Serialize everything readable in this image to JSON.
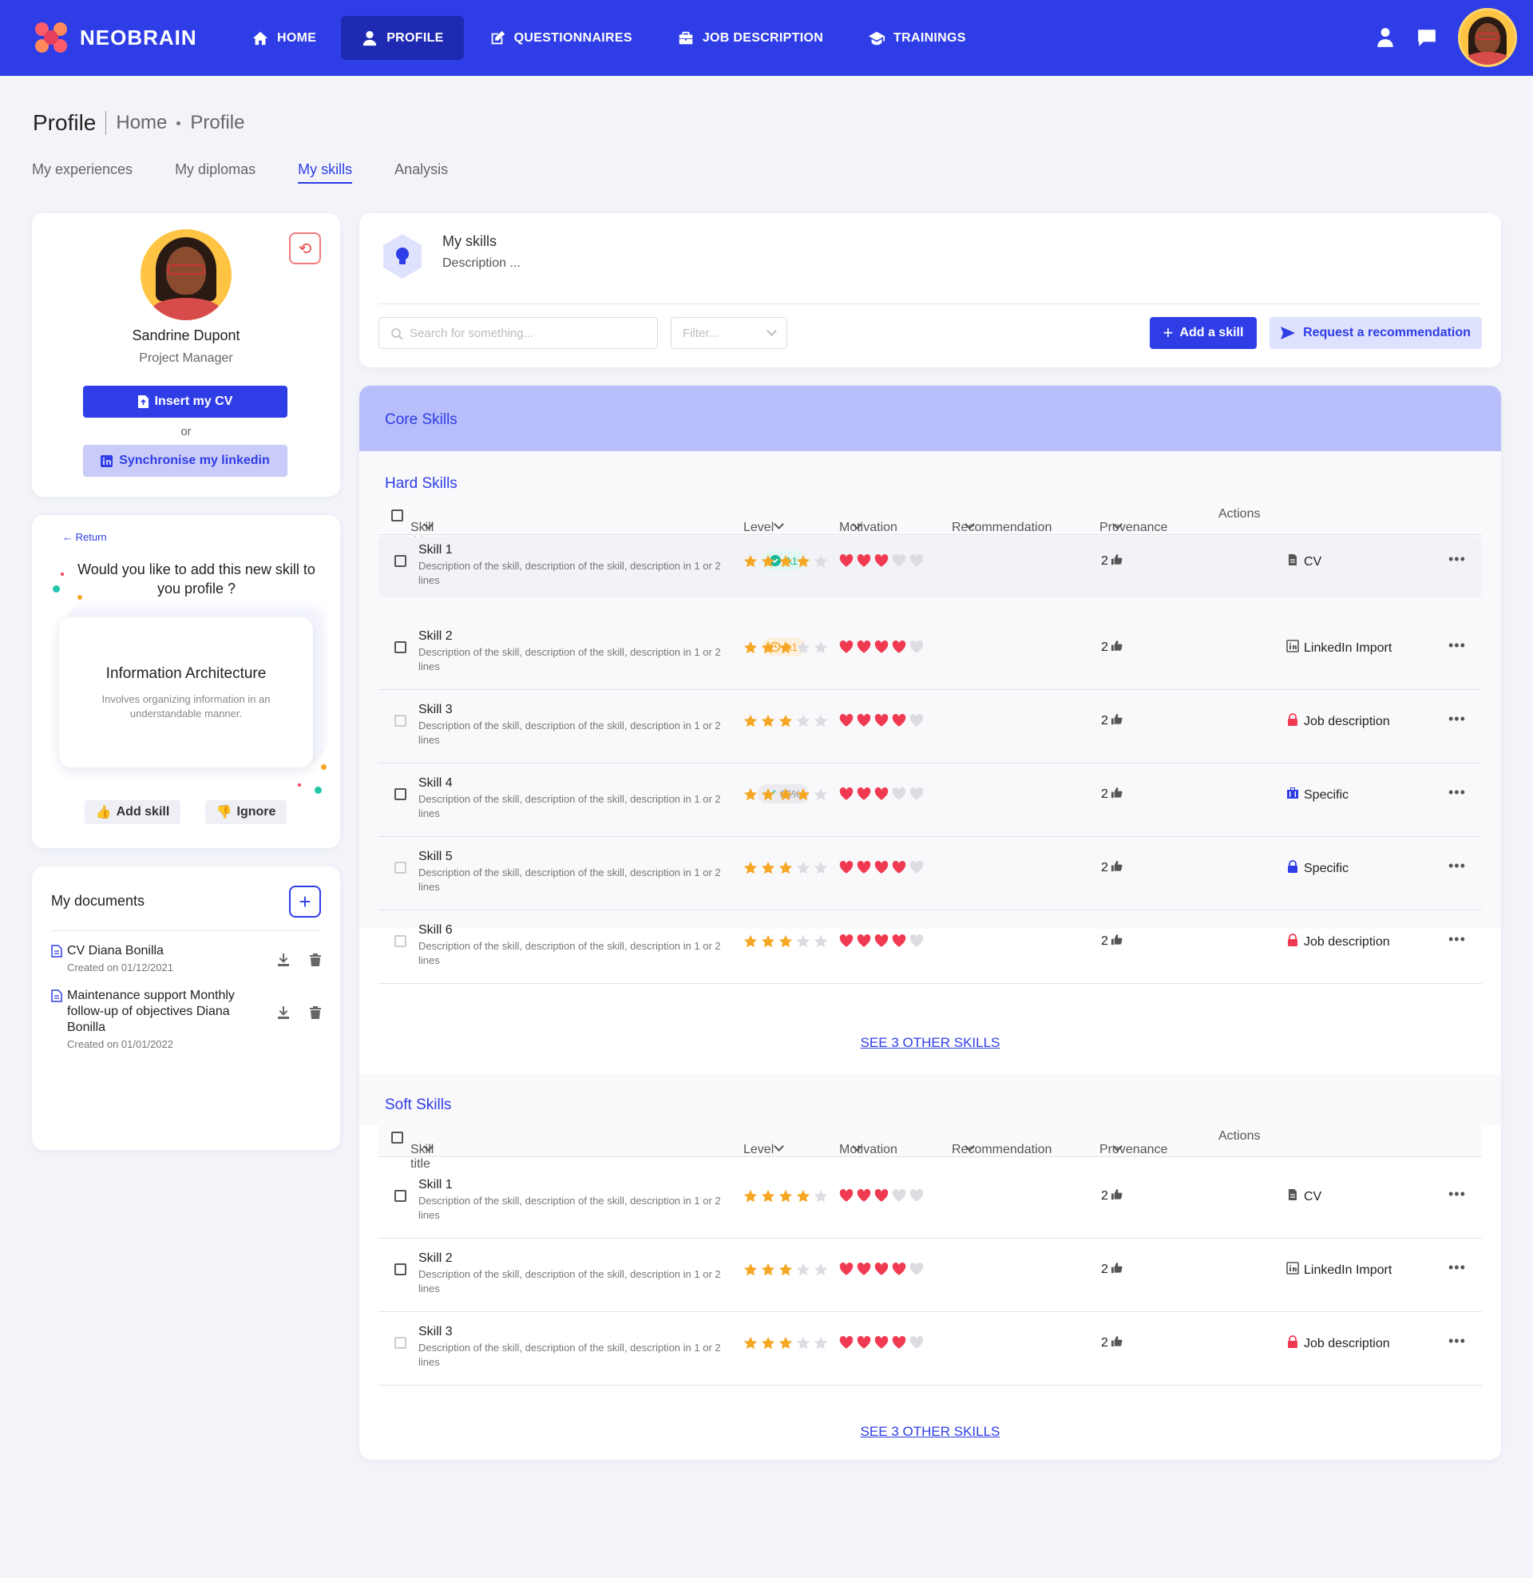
{
  "app": {
    "name": "NEOBRAIN"
  },
  "nav": [
    {
      "label": "HOME",
      "icon": "home-icon",
      "active": false
    },
    {
      "label": "PROFILE",
      "icon": "user-icon",
      "active": true
    },
    {
      "label": "QUESTIONNAIRES",
      "icon": "edit-icon",
      "active": false
    },
    {
      "label": "JOB DESCRIPTION",
      "icon": "briefcase-icon",
      "active": false
    },
    {
      "label": "TRAININGS",
      "icon": "graduation-cap-icon",
      "active": false
    }
  ],
  "header": {
    "title": "Profile",
    "breadcrumb": [
      "Home",
      "Profile"
    ]
  },
  "tabs": [
    "My experiences",
    "My diplomas",
    "My skills",
    "Analysis"
  ],
  "active_tab": "My skills",
  "profile": {
    "name": "Sandrine Dupont",
    "role": "Project Manager",
    "insert_cv": "Insert my CV",
    "or": "or",
    "sync_linkedin": "Synchronise my linkedin"
  },
  "suggestion": {
    "return": "Return",
    "question": "Would you like to add this new skill to you profile ?",
    "skill_title": "Information Architecture",
    "skill_desc": "Involves organizing information in an understandable manner.",
    "add": "Add skill",
    "ignore": "Ignore"
  },
  "documents": {
    "title": "My documents",
    "items": [
      {
        "name": "CV Diana Bonilla",
        "date": "Created on 01/12/2021"
      },
      {
        "name": "Maintenance support Monthly follow-up of objectives Diana Bonilla",
        "date": "Created on 01/01/2022"
      }
    ]
  },
  "skills_header": {
    "title": "My skills",
    "desc": "Description ...",
    "search_placeholder": "Search for something...",
    "filter_placeholder": "Filter...",
    "add_skill": "Add a skill",
    "request": "Request a recommendation"
  },
  "core_title": "Core Skills",
  "columns": [
    "Skill title",
    "Level",
    "Motivation",
    "Recommendation",
    "Provenance",
    "Actions"
  ],
  "hard_skills": {
    "title": "Hard Skills",
    "see_more": "SEE 3 OTHER SKILLS",
    "rows": [
      {
        "title": "Skill 1",
        "desc": "Description of the skill, description of the skill, description in 1 or 2 lines",
        "badge": "A1",
        "badge_type": "success",
        "level": 4,
        "motivation": 3,
        "reco": "2",
        "prov": "CV",
        "prov_icon": "document-icon",
        "prov_color": "#555555"
      },
      {
        "title": "Skill 2",
        "desc": "Description of the skill, description of the skill, description in 1 or 2 lines",
        "badge": "A1",
        "badge_type": "pending",
        "level": 3,
        "motivation": 4,
        "reco": "2",
        "prov": "LinkedIn Import",
        "prov_icon": "linkedin-icon",
        "prov_color": "#555555"
      },
      {
        "title": "Skill 3",
        "desc": "Description of the skill, description of the skill, description in 1 or 2 lines",
        "badge": "",
        "badge_type": "",
        "level": 3,
        "motivation": 4,
        "reco": "2",
        "prov": "Job description",
        "prov_icon": "lock-icon",
        "prov_color": "#f03a52"
      },
      {
        "title": "Skill 4",
        "desc": "Description of the skill, description of the skill, description in 1 or 2 lines",
        "badge": "65%",
        "badge_type": "neutral",
        "level": 4,
        "motivation": 3,
        "reco": "2",
        "prov": "Specific",
        "prov_icon": "briefcase-icon",
        "prov_color": "#2e3de6"
      },
      {
        "title": "Skill 5",
        "desc": "Description of the skill, description of the skill, description in 1 or 2 lines",
        "badge": "",
        "badge_type": "",
        "level": 3,
        "motivation": 4,
        "reco": "2",
        "prov": "Specific",
        "prov_icon": "lock-icon",
        "prov_color": "#2e3de6"
      },
      {
        "title": "Skill 6",
        "desc": "Description of the skill, description of the skill, description in 1 or 2 lines",
        "badge": "",
        "badge_type": "",
        "level": 3,
        "motivation": 4,
        "reco": "2",
        "prov": "Job description",
        "prov_icon": "lock-icon",
        "prov_color": "#f03a52"
      }
    ]
  },
  "soft_skills": {
    "title": "Soft Skills",
    "see_more": "SEE 3 OTHER SKILLS",
    "rows": [
      {
        "title": "Skill 1",
        "desc": "Description of the skill, description of the skill, description in 1 or 2 lines",
        "level": 4,
        "motivation": 3,
        "reco": "2",
        "prov": "CV",
        "prov_icon": "document-icon",
        "prov_color": "#555555"
      },
      {
        "title": "Skill 2",
        "desc": "Description of the skill, description of the skill, description in 1 or 2 lines",
        "level": 3,
        "motivation": 4,
        "reco": "2",
        "prov": "LinkedIn Import",
        "prov_icon": "linkedin-icon",
        "prov_color": "#555555"
      },
      {
        "title": "Skill 3",
        "desc": "Description of the skill, description of the skill, description in 1 or 2 lines",
        "level": 3,
        "motivation": 4,
        "reco": "2",
        "prov": "Job description",
        "prov_icon": "lock-icon",
        "prov_color": "#f03a52"
      }
    ]
  },
  "colors": {
    "primary": "#2e3de6",
    "star": "#f5a623",
    "heart": "#f03a52",
    "empty": "#dcdde3"
  }
}
